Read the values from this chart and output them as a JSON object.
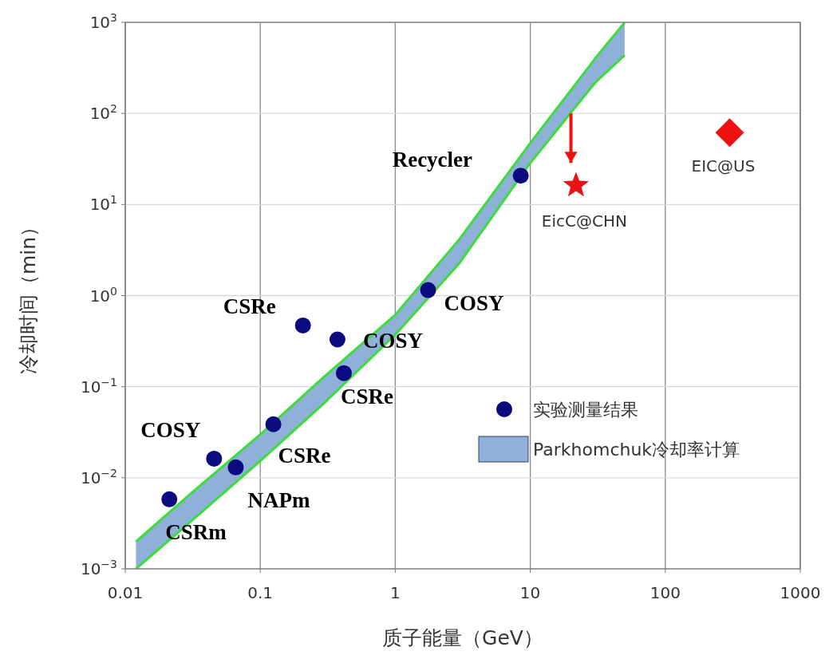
{
  "chart_data": {
    "type": "scatter",
    "xlabel": "质子能量（GeV）",
    "ylabel": "冷却时间（min）",
    "log": "xy",
    "xlim": [
      0.01,
      1000
    ],
    "ylim": [
      0.001,
      1000
    ],
    "xticks": [
      0.01,
      0.1,
      1,
      10,
      100,
      1000
    ],
    "yticks": [
      {
        "value": 0.001,
        "label": "10$^{−3}$"
      },
      {
        "value": 0.01,
        "label": "10$^{−2}$"
      },
      {
        "value": 0.1,
        "label": "10$^{−1}$"
      },
      {
        "value": 1,
        "label": "10$^{0}$"
      },
      {
        "value": 10,
        "label": "10$^{1}$"
      },
      {
        "value": 100,
        "label": "10$^{2}$"
      },
      {
        "value": 1000,
        "label": "10$^{3}$"
      }
    ],
    "grid": true,
    "legend": "right",
    "series": [
      {
        "type": "area",
        "name": "Parkhomchuk冷却率计算",
        "color": "#8fb0d8",
        "x": [
          0.012,
          0.03,
          0.1,
          0.3,
          1,
          3,
          10,
          30,
          50
        ],
        "values": [
          0.00199,
          0.00655,
          0.0298,
          0.13,
          0.615,
          4.2,
          47.3,
          395,
          1000
        ]
      },
      {
        "name": "实验测量结果",
        "color": "#0b0b7f",
        "marker": "circle",
        "x": [
          0.0212,
          0.0455,
          0.0658,
          0.125,
          0.207,
          0.373,
          0.416,
          1.75,
          8.5
        ],
        "values": [
          0.0058,
          0.0162,
          0.013,
          0.0387,
          0.47,
          0.33,
          0.141,
          1.15,
          20.7
        ]
      },
      {
        "color": "#ee1111",
        "marker": "star",
        "x": [
          21.8
        ],
        "values": [
          16.2
        ]
      },
      {
        "color": "#ee1111",
        "marker": "diamond",
        "x": [
          300
        ],
        "values": [
          61.5
        ]
      },
      {
        "type": "line",
        "color": "#3ddc3d",
        "x": [
          0.012,
          0.03,
          0.1,
          0.3,
          1,
          3,
          10,
          30,
          50
        ],
        "values": [
          0.00199,
          0.00655,
          0.0298,
          0.13,
          0.615,
          4.2,
          47.3,
          395,
          1000
        ]
      },
      {
        "type": "line",
        "color": "#3ddc3d",
        "x": [
          0.012,
          0.03,
          0.1,
          0.3,
          1,
          3,
          10,
          30,
          50
        ],
        "values": [
          0.001,
          0.00323,
          0.0153,
          0.0668,
          0.372,
          2.29,
          28.6,
          215,
          437
        ]
      },
      {
        "type": "line",
        "color": "#ee1111",
        "x": [
          20,
          20
        ],
        "values": [
          100,
          28.6
        ]
      }
    ],
    "annotations": [
      {
        "text": "CSRm",
        "x": 0.0212,
        "y": 0.0058
      },
      {
        "text": "COSY",
        "x": 0.0455,
        "y": 0.0162
      },
      {
        "text": "NAPm",
        "x": 0.0658,
        "y": 0.013
      },
      {
        "text": "CSRe",
        "x": 0.125,
        "y": 0.0387
      },
      {
        "text": "CSRe",
        "x": 0.207,
        "y": 0.47
      },
      {
        "text": "COSY",
        "x": 0.373,
        "y": 0.33
      },
      {
        "text": "CSRe",
        "x": 0.416,
        "y": 0.141
      },
      {
        "text": "COSY",
        "x": 1.75,
        "y": 1.15
      },
      {
        "text": "Recycler",
        "x": 8.5,
        "y": 20.7
      },
      {
        "text": "EicC@CHN",
        "x": 21.8,
        "y": 16.2
      },
      {
        "text": "EIC@US",
        "x": 300,
        "y": 61.5
      }
    ]
  }
}
